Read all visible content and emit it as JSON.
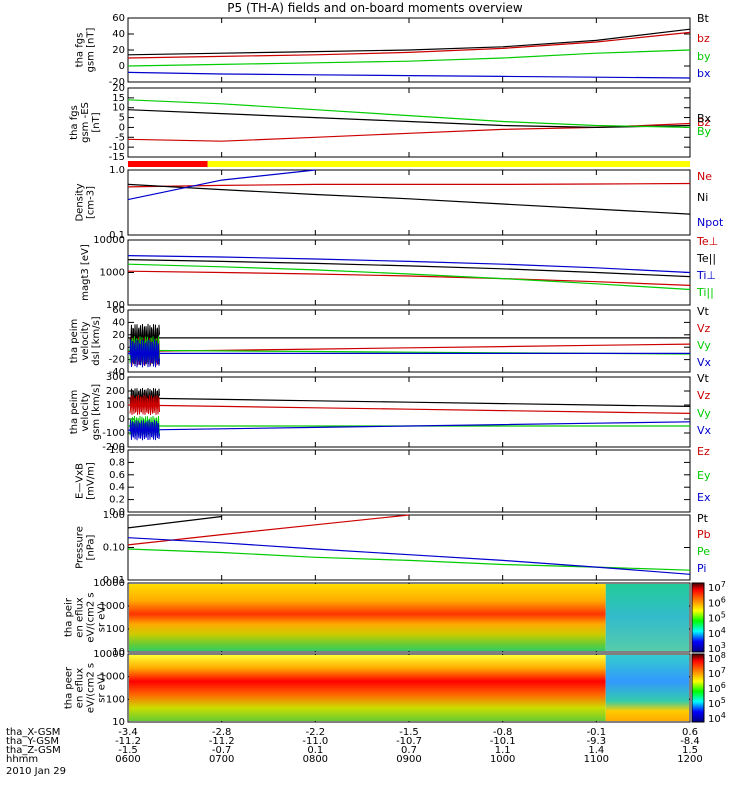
{
  "title": "P5 (TH-A) fields and on-board moments overview",
  "date_label": "2010 Jan 29",
  "ephemeris": {
    "row_labels": [
      "tha_X-GSM",
      "tha_Y-GSM",
      "tha_Z-GSM",
      "hhmm"
    ],
    "columns": [
      [
        "-3.4",
        "-11.2",
        "-1.5",
        "0600"
      ],
      [
        "-2.8",
        "-11.2",
        "-0.7",
        "0700"
      ],
      [
        "-2.2",
        "-11.0",
        "0.1",
        "0800"
      ],
      [
        "-1.5",
        "-10.7",
        "0.7",
        "0900"
      ],
      [
        "-0.8",
        "-10.1",
        "1.1",
        "1000"
      ],
      [
        "-0.1",
        "-9.3",
        "1.4",
        "1100"
      ],
      [
        "0.6",
        "-8.4",
        "1.5",
        "1200"
      ]
    ]
  },
  "colors": {
    "black": "#000000",
    "red": "#cc0000",
    "green": "#00cc00",
    "blue": "#0000cc",
    "bar_red": "#ff0000",
    "bar_yellow": "#ffff00"
  },
  "chart_data": [
    {
      "type": "line",
      "ylabel": "tha fgs gsm [nT]",
      "ylim": [
        -20,
        60
      ],
      "yticks": [
        "60",
        "40",
        "20",
        "0",
        "-20"
      ],
      "x": [
        6,
        7,
        8,
        9,
        10,
        11,
        12
      ],
      "series": [
        {
          "name": "Bt",
          "color": "black",
          "values": [
            14,
            16,
            18,
            20,
            24,
            32,
            46
          ]
        },
        {
          "name": "bz",
          "color": "red",
          "values": [
            10,
            12,
            14,
            17,
            22,
            30,
            42
          ]
        },
        {
          "name": "by",
          "color": "green",
          "values": [
            0,
            2,
            4,
            6,
            10,
            16,
            20
          ]
        },
        {
          "name": "bx",
          "color": "blue",
          "values": [
            -8,
            -10,
            -11,
            -12,
            -13,
            -14,
            -15
          ]
        }
      ]
    },
    {
      "type": "line",
      "ylabel": "tha fgs gsm -ES [nT]",
      "ylim": [
        -15,
        20
      ],
      "yticks": [
        "20",
        "15",
        "10",
        "5",
        "0",
        "-5",
        "-10",
        "-15"
      ],
      "x": [
        6,
        7,
        8,
        9,
        10,
        11,
        12
      ],
      "series": [
        {
          "name": "Bz",
          "color": "red",
          "values": [
            -6,
            -7,
            -5,
            -3,
            -1,
            0,
            2
          ]
        },
        {
          "name": "Bx",
          "color": "black",
          "values": [
            9,
            7,
            5,
            3,
            1,
            0,
            1
          ]
        },
        {
          "name": "By",
          "color": "green",
          "values": [
            14,
            12,
            9,
            6,
            3,
            1,
            0
          ]
        }
      ]
    },
    {
      "type": "line",
      "ylabel": "Density [cm-3]",
      "ylim": [
        0.1,
        1.0
      ],
      "yticks": [
        "1.0",
        "0.1"
      ],
      "log": true,
      "x": [
        6,
        7,
        8,
        9,
        10,
        11,
        12
      ],
      "series": [
        {
          "name": "Ne",
          "color": "red",
          "values": [
            0.55,
            0.58,
            0.6,
            0.6,
            0.6,
            0.61,
            0.62
          ]
        },
        {
          "name": "Ni",
          "color": "black",
          "values": [
            0.6,
            0.5,
            0.42,
            0.36,
            0.3,
            0.25,
            0.21
          ]
        },
        {
          "name": "Npot",
          "color": "blue",
          "values": [
            0.35,
            0.7,
            1.0,
            null,
            null,
            null,
            null
          ]
        }
      ]
    },
    {
      "type": "line",
      "ylabel": "magt3 [eV]",
      "ylim": [
        100,
        10000
      ],
      "yticks": [
        "10000",
        "1000",
        "100"
      ],
      "log": true,
      "x": [
        6,
        7,
        8,
        9,
        10,
        11,
        12
      ],
      "series": [
        {
          "name": "Te⊥",
          "color": "red",
          "values": [
            1100,
            1000,
            900,
            780,
            650,
            520,
            400
          ]
        },
        {
          "name": "Te||",
          "color": "black",
          "values": [
            2500,
            2200,
            1900,
            1600,
            1300,
            1000,
            750
          ]
        },
        {
          "name": "Ti⊥",
          "color": "blue",
          "values": [
            3300,
            3000,
            2600,
            2200,
            1800,
            1400,
            1000
          ]
        },
        {
          "name": "Ti||",
          "color": "green",
          "values": [
            1800,
            1500,
            1200,
            900,
            650,
            450,
            300
          ]
        }
      ]
    },
    {
      "type": "line",
      "ylabel": "tha peim velocity dsl [km/s]",
      "ylim": [
        -40,
        60
      ],
      "yticks": [
        "60",
        "40",
        "20",
        "0",
        "-20",
        "-40"
      ],
      "x": [
        6,
        7,
        8,
        9,
        10,
        11,
        12
      ],
      "series": [
        {
          "name": "Vt",
          "color": "black",
          "values": [
            15,
            15,
            15,
            15,
            15,
            15,
            15
          ]
        },
        {
          "name": "Vz",
          "color": "red",
          "values": [
            -7,
            -5,
            -3,
            -1,
            1,
            3,
            5
          ]
        },
        {
          "name": "Vy",
          "color": "green",
          "values": [
            -5,
            -6,
            -7,
            -8,
            -9,
            -10,
            -11
          ]
        },
        {
          "name": "Vx",
          "color": "blue",
          "values": [
            -10,
            -10,
            -10,
            -10,
            -10,
            -10,
            -10
          ]
        }
      ]
    },
    {
      "type": "line",
      "ylabel": "tha peim velocity gsm [km/s]",
      "ylim": [
        -200,
        300
      ],
      "yticks": [
        "300",
        "200",
        "100",
        "0",
        "-100",
        "-200"
      ],
      "x": [
        6,
        7,
        8,
        9,
        10,
        11,
        12
      ],
      "series": [
        {
          "name": "Vt",
          "color": "black",
          "values": [
            150,
            140,
            130,
            120,
            110,
            100,
            90
          ]
        },
        {
          "name": "Vz",
          "color": "red",
          "values": [
            100,
            90,
            80,
            70,
            60,
            50,
            40
          ]
        },
        {
          "name": "Vy",
          "color": "green",
          "values": [
            -50,
            -50,
            -50,
            -50,
            -50,
            -50,
            -50
          ]
        },
        {
          "name": "Vx",
          "color": "blue",
          "values": [
            -80,
            -70,
            -60,
            -50,
            -40,
            -30,
            -20
          ]
        }
      ]
    },
    {
      "type": "line",
      "ylabel": "E—VxB [mV/m]",
      "ylim": [
        0.0,
        1.0
      ],
      "yticks": [
        "1.0",
        "0.8",
        "0.6",
        "0.4",
        "0.2",
        "0.0"
      ],
      "x": [],
      "series": [
        {
          "name": "Ez",
          "color": "red",
          "values": []
        },
        {
          "name": "Ey",
          "color": "green",
          "values": []
        },
        {
          "name": "Ex",
          "color": "blue",
          "values": []
        }
      ]
    },
    {
      "type": "line",
      "ylabel": "Pressure [nPa]",
      "ylim": [
        0.01,
        1.0
      ],
      "yticks": [
        "1.00",
        "0.10",
        "0.01"
      ],
      "log": true,
      "x": [
        6,
        7,
        8,
        9,
        10,
        11,
        12
      ],
      "series": [
        {
          "name": "Pt",
          "color": "black",
          "values": [
            0.4,
            0.9,
            null,
            null,
            null,
            null,
            null
          ]
        },
        {
          "name": "Pb",
          "color": "red",
          "values": [
            0.12,
            0.25,
            0.5,
            1.0,
            null,
            null,
            null
          ]
        },
        {
          "name": "Pe",
          "color": "green",
          "values": [
            0.09,
            0.07,
            0.05,
            0.04,
            0.03,
            0.025,
            0.02
          ]
        },
        {
          "name": "Pi",
          "color": "blue",
          "values": [
            0.2,
            0.14,
            0.09,
            0.06,
            0.04,
            0.025,
            0.015
          ]
        }
      ]
    },
    {
      "type": "heatmap",
      "ylabel": "tha peir en eflux eV/(cm2 s sr eV)",
      "ylim": [
        10,
        10000
      ],
      "yticks": [
        "10000",
        "1000",
        "100",
        "10"
      ],
      "colorbar_ticks": [
        "10^7",
        "10^6",
        "10^5",
        "10^4",
        "10^3"
      ]
    },
    {
      "type": "heatmap",
      "ylabel": "tha peer en eflux eV/(cm2 s sr eV)",
      "ylim": [
        10,
        10000
      ],
      "yticks": [
        "10000",
        "1000",
        "100",
        "10"
      ],
      "colorbar_ticks": [
        "10^8",
        "10^7",
        "10^6",
        "10^5",
        "10^4"
      ]
    }
  ]
}
